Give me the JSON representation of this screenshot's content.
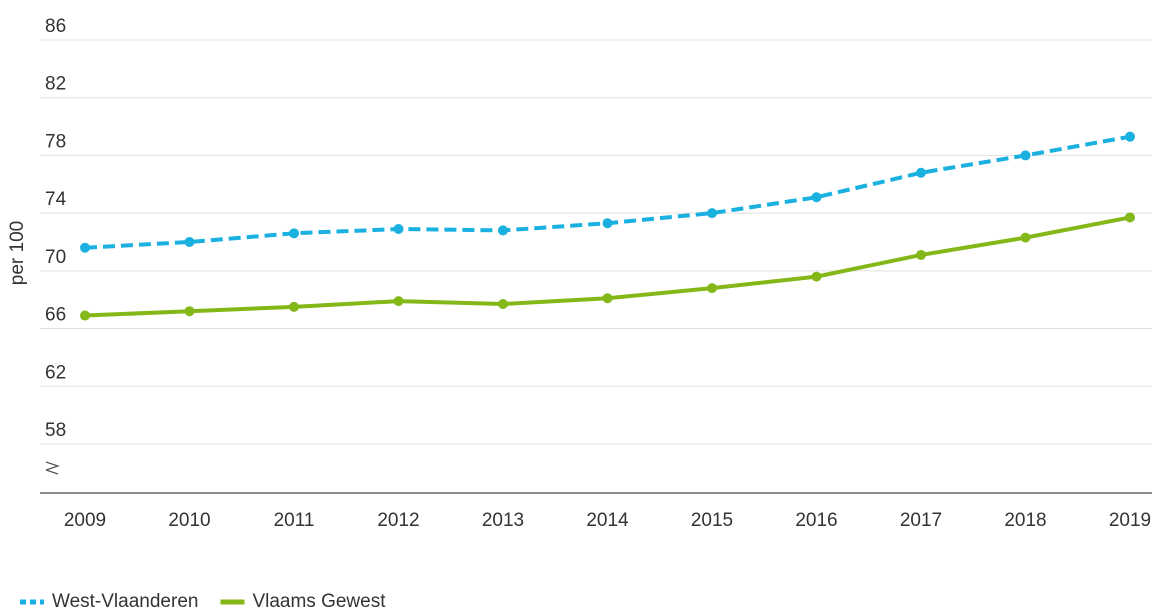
{
  "chart_data": {
    "type": "line",
    "y_label": "per 100",
    "categories": [
      "2009",
      "2010",
      "2011",
      "2012",
      "2013",
      "2014",
      "2015",
      "2016",
      "2017",
      "2018",
      "2019"
    ],
    "series": [
      {
        "name": "West-Vlaanderen",
        "color": "#1ab0e0",
        "line_style": "dashed",
        "values": [
          71.6,
          72.0,
          72.6,
          72.9,
          72.8,
          73.3,
          74.0,
          75.1,
          76.8,
          78.0,
          79.3
        ]
      },
      {
        "name": "Vlaams Gewest",
        "color": "#84b819",
        "line_style": "solid",
        "values": [
          66.9,
          67.2,
          67.5,
          67.9,
          67.7,
          68.1,
          68.8,
          69.6,
          71.1,
          72.3,
          73.7
        ]
      }
    ],
    "ylim": [
      54.6,
      86
    ],
    "yticks": [
      58,
      62,
      66,
      70,
      74,
      78,
      82,
      86
    ],
    "grid": true,
    "legend": "bottom-left"
  }
}
